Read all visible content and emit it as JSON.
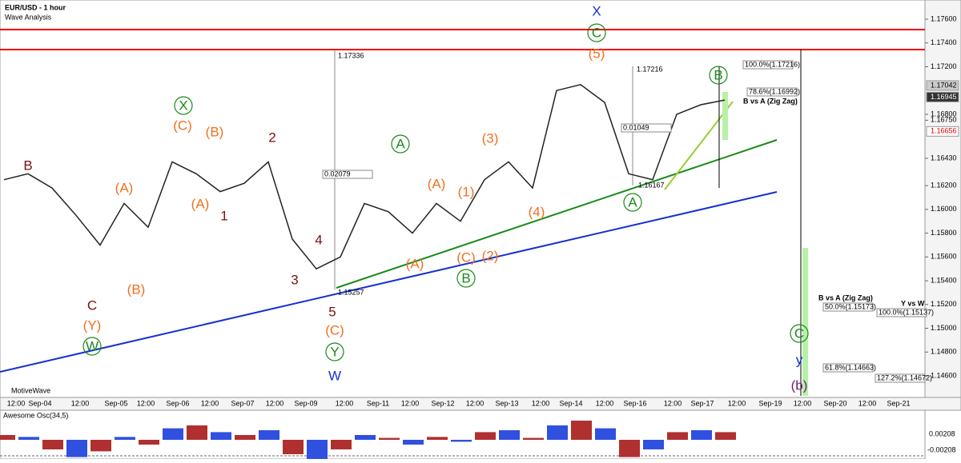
{
  "header": {
    "title": "EUR/USD - 1 hour",
    "subtitle": "Wave Analysis"
  },
  "price_axis": {
    "ticks": [
      "1.17600",
      "1.17400",
      "1.17200",
      "1.16800",
      "1.16750",
      "1.16430",
      "1.16200",
      "1.16000",
      "1.15800",
      "1.15600",
      "1.15400",
      "1.15200",
      "1.15000",
      "1.14800",
      "1.14600"
    ],
    "markers": [
      "1.17042",
      "1.16945",
      "1.16656"
    ]
  },
  "time_axis": [
    "12:00",
    "Sep-04",
    "12:00",
    "Sep-05",
    "12:00",
    "Sep-06",
    "12:00",
    "Sep-07",
    "12:00",
    "Sep-09",
    "12:00",
    "Sep-11",
    "12:00",
    "Sep-12",
    "12:00",
    "Sep-13",
    "12:00",
    "Sep-14",
    "12:00",
    "Sep-16",
    "12:00",
    "Sep-17",
    "12:00",
    "Sep-19",
    "12:00",
    "Sep-20",
    "12:00",
    "Sep-21"
  ],
  "price_close": [
    1.1625,
    1.163,
    1.1618,
    1.1595,
    1.157,
    1.1605,
    1.1585,
    1.164,
    1.163,
    1.1615,
    1.1622,
    1.164,
    1.1575,
    1.155,
    1.156,
    1.1605,
    1.1598,
    1.158,
    1.1605,
    1.159,
    1.1625,
    1.164,
    1.1618,
    1.17,
    1.1705,
    1.169,
    1.163,
    1.1625,
    1.168,
    1.1688,
    1.1692
  ],
  "wave_labels": [
    "B",
    "2",
    "1",
    "4",
    "3",
    "5",
    "C",
    "(A)",
    "(C)",
    "(B)",
    "(A)",
    "(B)",
    "(Y)",
    "(C)",
    "(A)",
    "(1)",
    "(3)",
    "(4)",
    "(C)",
    "(2)",
    "(A)",
    "(5)",
    "X",
    "W",
    "A",
    "B",
    "Y",
    "C",
    "A",
    "B",
    "C",
    "X",
    "W",
    "y",
    "(b)"
  ],
  "annotations": [
    "1.17336",
    "0.02079",
    "1.15257",
    "1.17216",
    "0.01049",
    "1.16167",
    "100.0%(1.17216)",
    "78.6%(1.16992)",
    "B vs A (Zig Zag)",
    "B vs A (Zig Zag)",
    "Y vs W",
    "50.0%(1.15173)",
    "100.0%(1.15137)",
    "61.8%(1.14663)",
    "127.2%(1.14672)"
  ],
  "footer": "MotiveWave",
  "oscillator": {
    "title": "Awesome Osc(34,5)",
    "ticks": [
      "0.00208",
      "-0.00208"
    ],
    "values": [
      0.0005,
      0.0003,
      -0.001,
      -0.0018,
      -0.0012,
      0.0003,
      -0.0005,
      0.0012,
      0.0015,
      0.0008,
      0.0005,
      0.001,
      -0.0015,
      -0.0022,
      -0.001,
      0.0005,
      0.0002,
      -0.0005,
      0.0003,
      -0.0002,
      0.0008,
      0.001,
      0.0002,
      0.0015,
      0.002,
      0.0012,
      -0.0018,
      -0.001,
      0.0008,
      0.001,
      0.0008
    ]
  }
}
